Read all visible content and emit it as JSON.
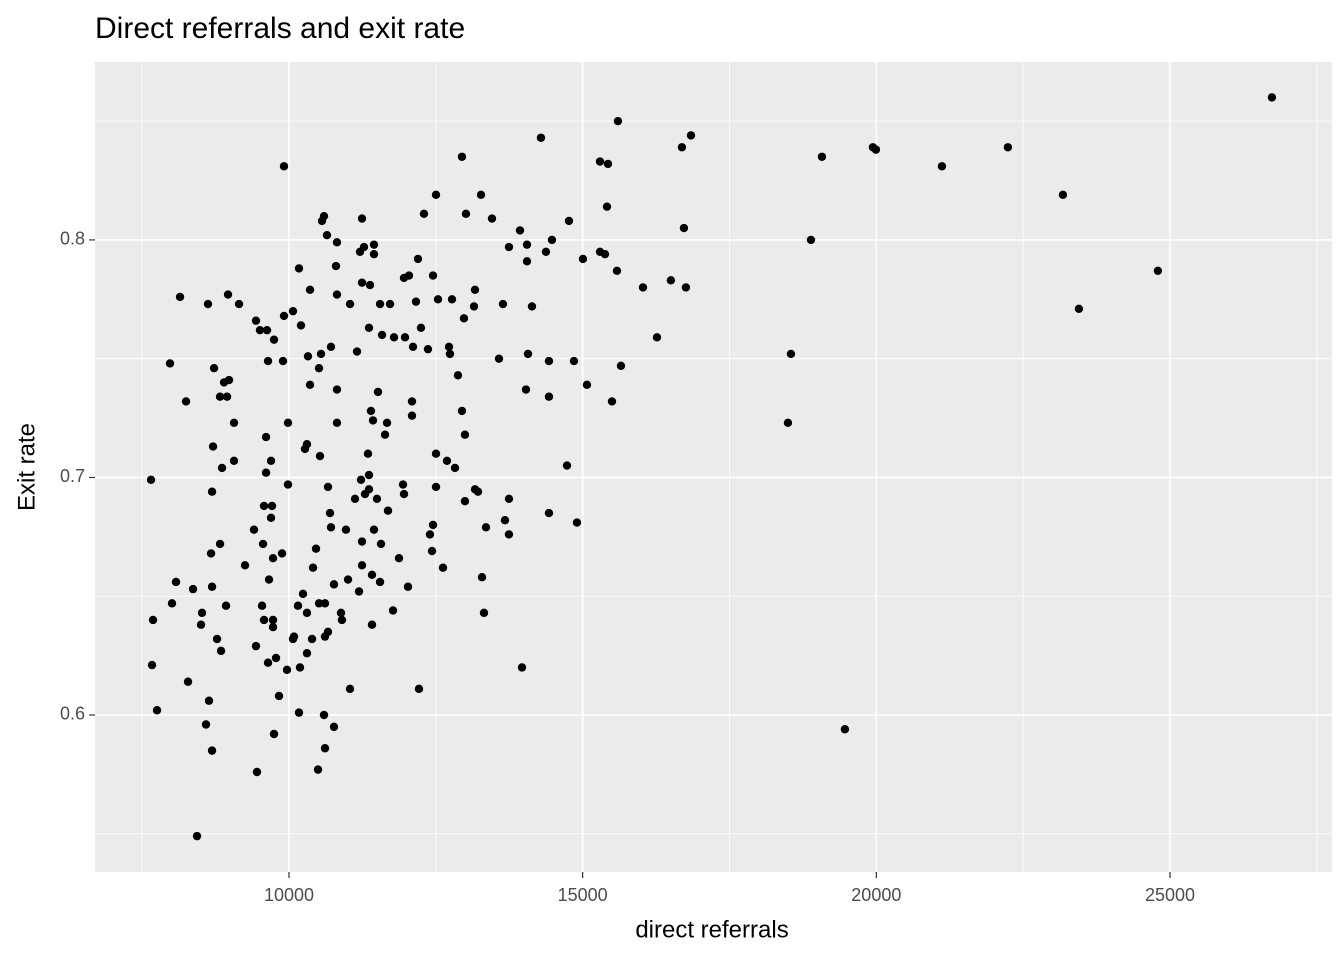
{
  "chart_data": {
    "type": "scatter",
    "title": "Direct referrals and exit rate",
    "x_label": "direct referrals",
    "y_label": "Exit rate",
    "xlim": [
      6697,
      27758
    ],
    "ylim": [
      0.5339,
      0.8749
    ],
    "xticks": [
      10000,
      15000,
      20000,
      25000
    ],
    "yticks": [
      0.6,
      0.7,
      0.8
    ],
    "x_minor_breaks": [
      7500,
      12500,
      17500,
      22500,
      27500
    ],
    "y_minor_breaks": [
      0.55,
      0.65,
      0.75,
      0.85
    ],
    "grid": true,
    "panel_color": "#ebebeb",
    "color": "#000000",
    "x": [
      26735,
      24794,
      23449,
      23177,
      22240,
      21117,
      19993,
      19942,
      19074,
      18887,
      18546,
      18495,
      19465,
      16844,
      16690,
      16724,
      16758,
      16502,
      16265,
      16027,
      15601,
      15431,
      15295,
      15414,
      15380,
      15295,
      15584,
      15652,
      15499,
      15073,
      15005,
      14852,
      14903,
      14733,
      14767,
      14290,
      14477,
      14375,
      14426,
      14426,
      14426,
      13933,
      14052,
      14052,
      14137,
      13643,
      13745,
      13456,
      13575,
      14069,
      14035,
      13677,
      13745,
      13745,
      13269,
      13354,
      13286,
      13320,
      13967,
      13167,
      13150,
      13167,
      13218,
      12945,
      13013,
      12979,
      12877,
      12945,
      12996,
      12996,
      12826,
      12775,
      12724,
      12741,
      12690,
      12622,
      12537,
      12503,
      12503,
      12503,
      12452,
      12452,
      12435,
      12400,
      12366,
      12298,
      12247,
      12213,
      12196,
      12162,
      12111,
      12094,
      12094,
      12026,
      11958,
      11941,
      12043,
      11958,
      11975,
      11873,
      11788,
      11771,
      11720,
      11686,
      11669,
      11635,
      11584,
      11550,
      11515,
      11498,
      11567,
      11550,
      11447,
      11447,
      11413,
      11413,
      11447,
      11430,
      11396,
      11379,
      11362,
      11362,
      11362,
      11345,
      11294,
      11277,
      11243,
      11243,
      11243,
      11243,
      11226,
      11209,
      11158,
      11192,
      11124,
      11039,
      11039,
      11005,
      10970,
      10902,
      10885,
      10817,
      10817,
      10817,
      10817,
      10800,
      10766,
      10766,
      10715,
      10715,
      10698,
      10664,
      10664,
      10647,
      10596,
      10562,
      10613,
      10613,
      10613,
      10596,
      10545,
      10528,
      10511,
      10511,
      10494,
      10460,
      10409,
      10392,
      10358,
      10358,
      10323,
      10306,
      10306,
      10306,
      10272,
      10238,
      10204,
      10187,
      10170,
      10170,
      10153,
      10085,
      10068,
      10068,
      9983,
      9983,
      9966,
      9915,
      9915,
      9898,
      9881,
      9830,
      9779,
      9745,
      9745,
      9728,
      9728,
      9728,
      9711,
      9694,
      9694,
      9660,
      9643,
      9643,
      9626,
      9609,
      9609,
      9575,
      9575,
      9558,
      9541,
      9506,
      9455,
      9438,
      9438,
      9404,
      9251,
      9149,
      9064,
      9064,
      8979,
      8945,
      8894,
      8962,
      8928,
      8860,
      8826,
      8826,
      8843,
      8775,
      8724,
      8707,
      8690,
      8690,
      8673,
      8690,
      8638,
      8621,
      8587,
      8519,
      8502,
      8434,
      8366,
      8281,
      8247,
      8145,
      8076,
      8008,
      7974,
      7753,
      7685,
      7668,
      7651
    ],
    "values": [
      0.86,
      0.787,
      0.771,
      0.819,
      0.839,
      0.831,
      0.838,
      0.839,
      0.835,
      0.8,
      0.752,
      0.723,
      0.594,
      0.844,
      0.839,
      0.805,
      0.78,
      0.783,
      0.759,
      0.78,
      0.85,
      0.832,
      0.833,
      0.814,
      0.794,
      0.795,
      0.787,
      0.747,
      0.732,
      0.739,
      0.792,
      0.749,
      0.681,
      0.705,
      0.808,
      0.843,
      0.8,
      0.795,
      0.749,
      0.734,
      0.685,
      0.804,
      0.791,
      0.798,
      0.772,
      0.773,
      0.797,
      0.809,
      0.75,
      0.752,
      0.737,
      0.682,
      0.676,
      0.691,
      0.819,
      0.679,
      0.658,
      0.643,
      0.62,
      0.779,
      0.772,
      0.695,
      0.694,
      0.835,
      0.811,
      0.767,
      0.743,
      0.728,
      0.718,
      0.69,
      0.704,
      0.775,
      0.755,
      0.752,
      0.707,
      0.662,
      0.775,
      0.819,
      0.71,
      0.696,
      0.785,
      0.68,
      0.669,
      0.676,
      0.754,
      0.811,
      0.763,
      0.611,
      0.792,
      0.774,
      0.755,
      0.732,
      0.726,
      0.654,
      0.693,
      0.697,
      0.785,
      0.784,
      0.759,
      0.666,
      0.759,
      0.644,
      0.773,
      0.686,
      0.723,
      0.718,
      0.76,
      0.773,
      0.736,
      0.691,
      0.672,
      0.656,
      0.798,
      0.794,
      0.659,
      0.638,
      0.678,
      0.724,
      0.728,
      0.781,
      0.763,
      0.701,
      0.695,
      0.71,
      0.693,
      0.797,
      0.809,
      0.782,
      0.663,
      0.673,
      0.699,
      0.795,
      0.753,
      0.652,
      0.691,
      0.611,
      0.773,
      0.657,
      0.678,
      0.64,
      0.643,
      0.799,
      0.777,
      0.737,
      0.723,
      0.789,
      0.655,
      0.595,
      0.755,
      0.679,
      0.685,
      0.696,
      0.635,
      0.802,
      0.81,
      0.808,
      0.586,
      0.633,
      0.647,
      0.6,
      0.752,
      0.709,
      0.746,
      0.647,
      0.577,
      0.67,
      0.662,
      0.632,
      0.739,
      0.779,
      0.751,
      0.714,
      0.643,
      0.626,
      0.712,
      0.651,
      0.764,
      0.62,
      0.788,
      0.601,
      0.646,
      0.633,
      0.77,
      0.632,
      0.697,
      0.723,
      0.619,
      0.831,
      0.768,
      0.749,
      0.668,
      0.608,
      0.624,
      0.758,
      0.592,
      0.666,
      0.637,
      0.64,
      0.688,
      0.707,
      0.683,
      0.657,
      0.749,
      0.622,
      0.762,
      0.702,
      0.717,
      0.688,
      0.64,
      0.672,
      0.646,
      0.762,
      0.576,
      0.629,
      0.766,
      0.678,
      0.663,
      0.773,
      0.707,
      0.723,
      0.741,
      0.734,
      0.74,
      0.777,
      0.646,
      0.704,
      0.734,
      0.672,
      0.627,
      0.632,
      0.746,
      0.713,
      0.694,
      0.654,
      0.668,
      0.585,
      0.606,
      0.773,
      0.596,
      0.643,
      0.638,
      0.549,
      0.653,
      0.614,
      0.732,
      0.776,
      0.656,
      0.647,
      0.748,
      0.602,
      0.64,
      0.621,
      0.699
    ]
  }
}
